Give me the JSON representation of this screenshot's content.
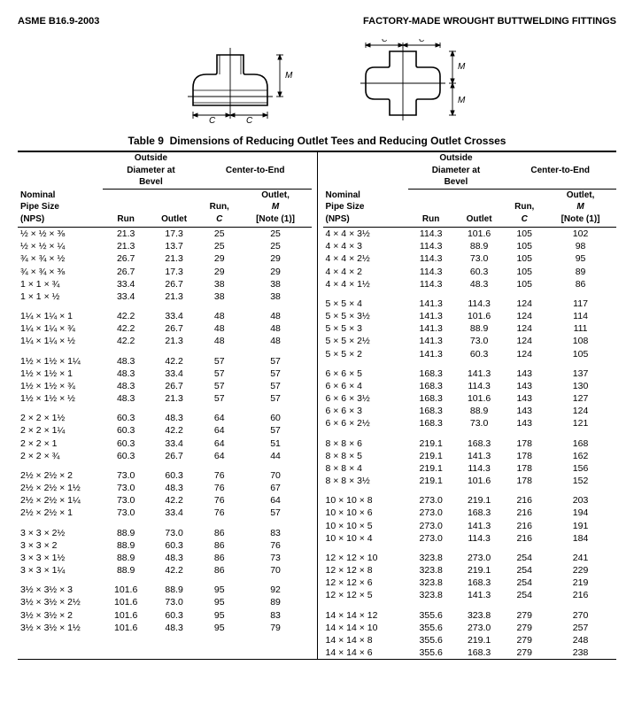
{
  "header": {
    "left": "ASME B16.9-2003",
    "right": "FACTORY-MADE WROUGHT BUTTWELDING FITTINGS"
  },
  "title": {
    "label": "Table 9",
    "text": "Dimensions of Reducing Outlet Tees and Reducing Outlet Crosses"
  },
  "cols": {
    "nominal1": "Nominal",
    "nominal2": "Pipe Size",
    "nominal3": "(NPS)",
    "outside1": "Outside",
    "outside2": "Diameter at",
    "outside3": "Bevel",
    "run": "Run",
    "outlet": "Outlet",
    "cte": "Center-to-End",
    "runc1": "Run,",
    "runc2": "C",
    "outm1": "Outlet,",
    "outm2": "M",
    "outm3": "[Note (1)]"
  },
  "diagram": {
    "c_label": "C",
    "m_label": "M"
  },
  "groupsLeft": [
    [
      {
        "nps": "½ × ½ × ⅜",
        "r": "21.3",
        "o": "17.3",
        "c": "25",
        "m": "25"
      },
      {
        "nps": "½ × ½ × ¼",
        "r": "21.3",
        "o": "13.7",
        "c": "25",
        "m": "25"
      },
      {
        "nps": "¾ × ¾ × ½",
        "r": "26.7",
        "o": "21.3",
        "c": "29",
        "m": "29"
      },
      {
        "nps": "¾ × ¾ × ⅜",
        "r": "26.7",
        "o": "17.3",
        "c": "29",
        "m": "29"
      },
      {
        "nps": "1 × 1 × ¾",
        "r": "33.4",
        "o": "26.7",
        "c": "38",
        "m": "38"
      },
      {
        "nps": "1 × 1 × ½",
        "r": "33.4",
        "o": "21.3",
        "c": "38",
        "m": "38"
      }
    ],
    [
      {
        "nps": "1¼ × 1¼ × 1",
        "r": "42.2",
        "o": "33.4",
        "c": "48",
        "m": "48"
      },
      {
        "nps": "1¼ × 1¼ × ¾",
        "r": "42.2",
        "o": "26.7",
        "c": "48",
        "m": "48"
      },
      {
        "nps": "1¼ × 1¼ × ½",
        "r": "42.2",
        "o": "21.3",
        "c": "48",
        "m": "48"
      }
    ],
    [
      {
        "nps": "1½ × 1½ × 1¼",
        "r": "48.3",
        "o": "42.2",
        "c": "57",
        "m": "57"
      },
      {
        "nps": "1½ × 1½ × 1",
        "r": "48.3",
        "o": "33.4",
        "c": "57",
        "m": "57"
      },
      {
        "nps": "1½ × 1½ × ¾",
        "r": "48.3",
        "o": "26.7",
        "c": "57",
        "m": "57"
      },
      {
        "nps": "1½ × 1½ × ½",
        "r": "48.3",
        "o": "21.3",
        "c": "57",
        "m": "57"
      }
    ],
    [
      {
        "nps": "2 × 2 × 1½",
        "r": "60.3",
        "o": "48.3",
        "c": "64",
        "m": "60"
      },
      {
        "nps": "2 × 2 × 1¼",
        "r": "60.3",
        "o": "42.2",
        "c": "64",
        "m": "57"
      },
      {
        "nps": "2 × 2 × 1",
        "r": "60.3",
        "o": "33.4",
        "c": "64",
        "m": "51"
      },
      {
        "nps": "2 × 2 × ¾",
        "r": "60.3",
        "o": "26.7",
        "c": "64",
        "m": "44"
      }
    ],
    [
      {
        "nps": "2½ × 2½ × 2",
        "r": "73.0",
        "o": "60.3",
        "c": "76",
        "m": "70"
      },
      {
        "nps": "2½ × 2½ × 1½",
        "r": "73.0",
        "o": "48.3",
        "c": "76",
        "m": "67"
      },
      {
        "nps": "2½ × 2½ × 1¼",
        "r": "73.0",
        "o": "42.2",
        "c": "76",
        "m": "64"
      },
      {
        "nps": "2½ × 2½ × 1",
        "r": "73.0",
        "o": "33.4",
        "c": "76",
        "m": "57"
      }
    ],
    [
      {
        "nps": "3 × 3 × 2½",
        "r": "88.9",
        "o": "73.0",
        "c": "86",
        "m": "83"
      },
      {
        "nps": "3 × 3 × 2",
        "r": "88.9",
        "o": "60.3",
        "c": "86",
        "m": "76"
      },
      {
        "nps": "3 × 3 × 1½",
        "r": "88.9",
        "o": "48.3",
        "c": "86",
        "m": "73"
      },
      {
        "nps": "3 × 3 × 1¼",
        "r": "88.9",
        "o": "42.2",
        "c": "86",
        "m": "70"
      }
    ],
    [
      {
        "nps": "3½ × 3½ × 3",
        "r": "101.6",
        "o": "88.9",
        "c": "95",
        "m": "92"
      },
      {
        "nps": "3½ × 3½ × 2½",
        "r": "101.6",
        "o": "73.0",
        "c": "95",
        "m": "89"
      },
      {
        "nps": "3½ × 3½ × 2",
        "r": "101.6",
        "o": "60.3",
        "c": "95",
        "m": "83"
      },
      {
        "nps": "3½ × 3½ × 1½",
        "r": "101.6",
        "o": "48.3",
        "c": "95",
        "m": "79"
      }
    ]
  ],
  "groupsRight": [
    [
      {
        "nps": "4 × 4 × 3½",
        "r": "114.3",
        "o": "101.6",
        "c": "105",
        "m": "102"
      },
      {
        "nps": "4 × 4 × 3",
        "r": "114.3",
        "o": "88.9",
        "c": "105",
        "m": "98"
      },
      {
        "nps": "4 × 4 × 2½",
        "r": "114.3",
        "o": "73.0",
        "c": "105",
        "m": "95"
      },
      {
        "nps": "4 × 4 × 2",
        "r": "114.3",
        "o": "60.3",
        "c": "105",
        "m": "89"
      },
      {
        "nps": "4 × 4 × 1½",
        "r": "114.3",
        "o": "48.3",
        "c": "105",
        "m": "86"
      }
    ],
    [
      {
        "nps": "5 × 5 × 4",
        "r": "141.3",
        "o": "114.3",
        "c": "124",
        "m": "117"
      },
      {
        "nps": "5 × 5 × 3½",
        "r": "141.3",
        "o": "101.6",
        "c": "124",
        "m": "114"
      },
      {
        "nps": "5 × 5 × 3",
        "r": "141.3",
        "o": "88.9",
        "c": "124",
        "m": "111"
      },
      {
        "nps": "5 × 5 × 2½",
        "r": "141.3",
        "o": "73.0",
        "c": "124",
        "m": "108"
      },
      {
        "nps": "5 × 5 × 2",
        "r": "141.3",
        "o": "60.3",
        "c": "124",
        "m": "105"
      }
    ],
    [
      {
        "nps": "6 × 6 × 5",
        "r": "168.3",
        "o": "141.3",
        "c": "143",
        "m": "137"
      },
      {
        "nps": "6 × 6 × 4",
        "r": "168.3",
        "o": "114.3",
        "c": "143",
        "m": "130"
      },
      {
        "nps": "6 × 6 × 3½",
        "r": "168.3",
        "o": "101.6",
        "c": "143",
        "m": "127"
      },
      {
        "nps": "6 × 6 × 3",
        "r": "168.3",
        "o": "88.9",
        "c": "143",
        "m": "124"
      },
      {
        "nps": "6 × 6 × 2½",
        "r": "168.3",
        "o": "73.0",
        "c": "143",
        "m": "121"
      }
    ],
    [
      {
        "nps": "8 × 8 × 6",
        "r": "219.1",
        "o": "168.3",
        "c": "178",
        "m": "168"
      },
      {
        "nps": "8 × 8 × 5",
        "r": "219.1",
        "o": "141.3",
        "c": "178",
        "m": "162"
      },
      {
        "nps": "8 × 8 × 4",
        "r": "219.1",
        "o": "114.3",
        "c": "178",
        "m": "156"
      },
      {
        "nps": "8 × 8 × 3½",
        "r": "219.1",
        "o": "101.6",
        "c": "178",
        "m": "152"
      }
    ],
    [
      {
        "nps": "10 × 10 × 8",
        "r": "273.0",
        "o": "219.1",
        "c": "216",
        "m": "203"
      },
      {
        "nps": "10 × 10 × 6",
        "r": "273.0",
        "o": "168.3",
        "c": "216",
        "m": "194"
      },
      {
        "nps": "10 × 10 × 5",
        "r": "273.0",
        "o": "141.3",
        "c": "216",
        "m": "191"
      },
      {
        "nps": "10 × 10 × 4",
        "r": "273.0",
        "o": "114.3",
        "c": "216",
        "m": "184"
      }
    ],
    [
      {
        "nps": "12 × 12 × 10",
        "r": "323.8",
        "o": "273.0",
        "c": "254",
        "m": "241"
      },
      {
        "nps": "12 × 12 × 8",
        "r": "323.8",
        "o": "219.1",
        "c": "254",
        "m": "229"
      },
      {
        "nps": "12 × 12 × 6",
        "r": "323.8",
        "o": "168.3",
        "c": "254",
        "m": "219"
      },
      {
        "nps": "12 × 12 × 5",
        "r": "323.8",
        "o": "141.3",
        "c": "254",
        "m": "216"
      }
    ],
    [
      {
        "nps": "14 × 14 × 12",
        "r": "355.6",
        "o": "323.8",
        "c": "279",
        "m": "270"
      },
      {
        "nps": "14 × 14 × 10",
        "r": "355.6",
        "o": "273.0",
        "c": "279",
        "m": "257"
      },
      {
        "nps": "14 × 14 × 8",
        "r": "355.6",
        "o": "219.1",
        "c": "279",
        "m": "248"
      },
      {
        "nps": "14 × 14 × 6",
        "r": "355.6",
        "o": "168.3",
        "c": "279",
        "m": "238"
      }
    ]
  ]
}
